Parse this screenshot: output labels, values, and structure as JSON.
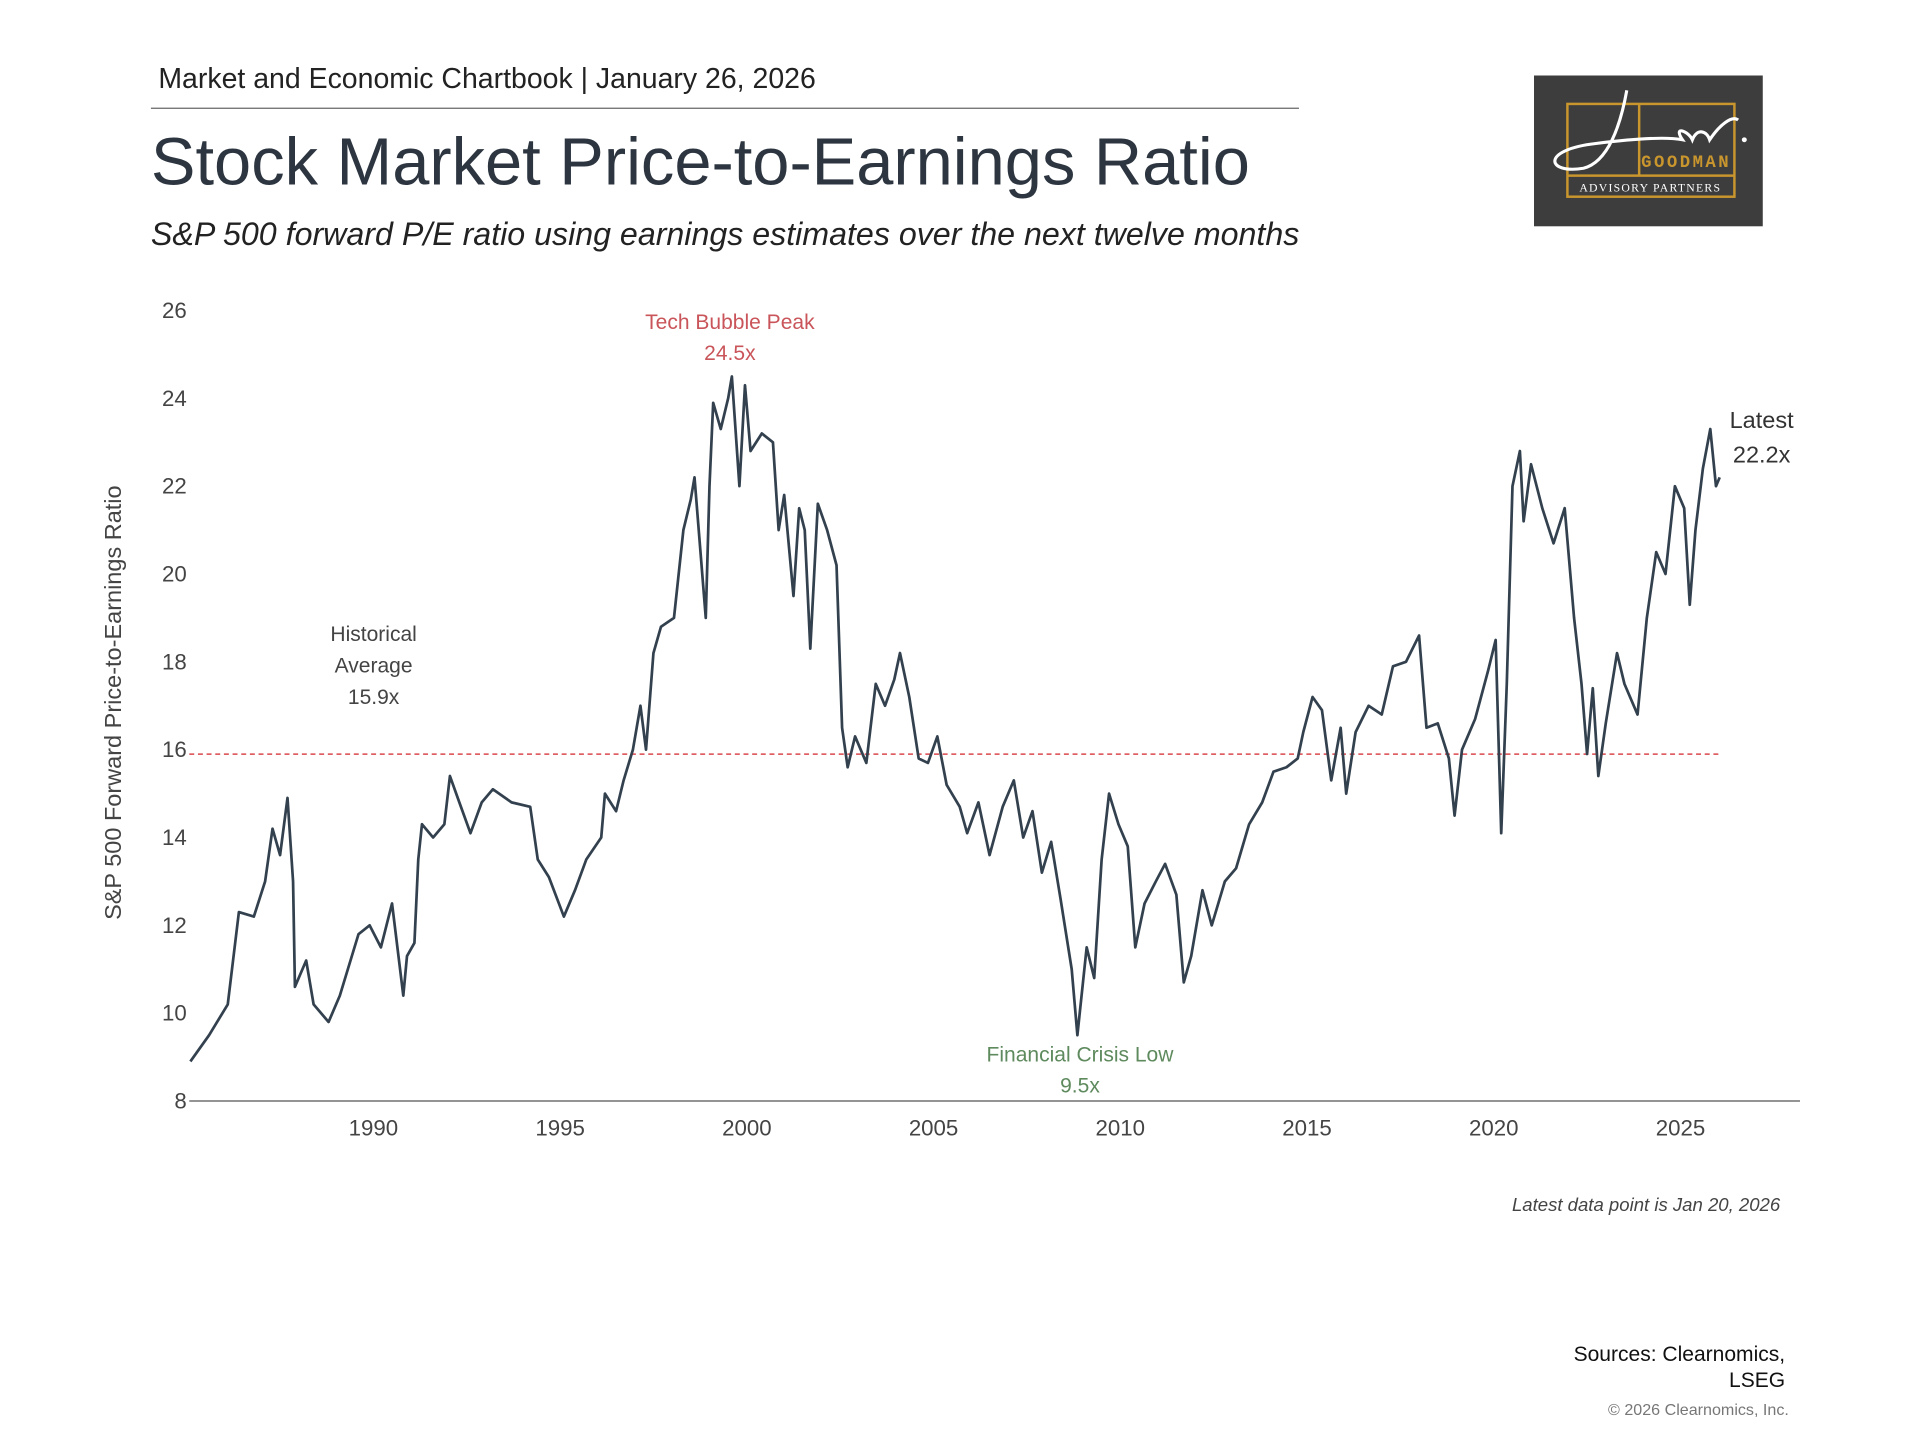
{
  "header": {
    "kicker": "Market and Economic Chartbook | January 26, 2026",
    "title": "Stock Market Price-to-Earnings Ratio",
    "subtitle": "S&P 500 forward P/E ratio using earnings estimates over the next twelve months"
  },
  "logo": {
    "script": "Jon C.",
    "name": "GOODMAN",
    "tagline": "ADVISORY PARTNERS",
    "bg": "#3d3d3d",
    "gold": "#c9962e"
  },
  "footer": {
    "note": "Latest data point is Jan 20, 2026",
    "sources_line1": "Sources: Clearnomics,",
    "sources_line2": "LSEG",
    "copyright": "© 2026 Clearnomics, Inc."
  },
  "chart_data": {
    "type": "line",
    "title": "Stock Market Price-to-Earnings Ratio",
    "xlabel": "",
    "ylabel": "S&P 500 Forward Price-to-Earnings Ratio",
    "xlim": [
      1985.07,
      2028.2
    ],
    "ylim": [
      8,
      26
    ],
    "yticks": [
      8,
      10,
      12,
      14,
      16,
      18,
      20,
      22,
      24,
      26
    ],
    "xticks": [
      1990,
      1995,
      2000,
      2005,
      2010,
      2015,
      2020,
      2025
    ],
    "grid": false,
    "line_color": "#33414f",
    "reference_line": {
      "value": 15.9,
      "color": "#d9484e",
      "style": "dashed"
    },
    "annotations": [
      {
        "id": "peak",
        "lines": [
          "Tech Bubble Peak",
          "24.5x"
        ],
        "color": "#c9555a",
        "x": 1999.6,
        "y": 24.5
      },
      {
        "id": "avg",
        "lines": [
          "Historical",
          "Average",
          "15.9x"
        ],
        "color": "#444444",
        "x": 1990.0,
        "y": 15.9
      },
      {
        "id": "low",
        "lines": [
          "Financial Crisis Low",
          "9.5x"
        ],
        "color": "#5e8a5e",
        "x": 2008.85,
        "y": 9.5
      },
      {
        "id": "latest",
        "lines": [
          "Latest",
          "22.2x"
        ],
        "color": "#333333",
        "x": 2026.05,
        "y": 22.2
      }
    ],
    "series": [
      {
        "name": "S&P 500 Forward P/E",
        "x": [
          1985.1,
          1985.6,
          1986.1,
          1986.4,
          1986.8,
          1987.1,
          1987.3,
          1987.5,
          1987.7,
          1987.85,
          1987.9,
          1988.2,
          1988.4,
          1988.8,
          1989.1,
          1989.6,
          1989.9,
          1990.2,
          1990.5,
          1990.8,
          1990.9,
          1991.1,
          1991.2,
          1991.3,
          1991.6,
          1991.9,
          1992.05,
          1992.3,
          1992.6,
          1992.9,
          1993.2,
          1993.7,
          1994.2,
          1994.4,
          1994.7,
          1995.1,
          1995.4,
          1995.7,
          1996.1,
          1996.2,
          1996.5,
          1996.7,
          1996.95,
          1997.15,
          1997.3,
          1997.5,
          1997.7,
          1998.05,
          1998.3,
          1998.5,
          1998.6,
          1998.9,
          1999.0,
          1999.1,
          1999.3,
          1999.5,
          1999.6,
          1999.8,
          1999.95,
          2000.1,
          2000.4,
          2000.7,
          2000.85,
          2001.0,
          2001.25,
          2001.4,
          2001.55,
          2001.7,
          2001.9,
          2002.15,
          2002.4,
          2002.55,
          2002.7,
          2002.9,
          2003.2,
          2003.45,
          2003.7,
          2003.95,
          2004.1,
          2004.35,
          2004.6,
          2004.85,
          2005.1,
          2005.35,
          2005.7,
          2005.9,
          2006.2,
          2006.5,
          2006.85,
          2007.15,
          2007.4,
          2007.65,
          2007.9,
          2008.15,
          2008.4,
          2008.7,
          2008.85,
          2009.1,
          2009.3,
          2009.5,
          2009.7,
          2009.95,
          2010.2,
          2010.4,
          2010.65,
          2010.95,
          2011.2,
          2011.5,
          2011.7,
          2011.9,
          2012.2,
          2012.45,
          2012.8,
          2013.1,
          2013.45,
          2013.8,
          2014.1,
          2014.45,
          2014.75,
          2014.9,
          2015.15,
          2015.4,
          2015.65,
          2015.9,
          2016.05,
          2016.3,
          2016.65,
          2017.0,
          2017.3,
          2017.65,
          2018.0,
          2018.2,
          2018.5,
          2018.8,
          2018.95,
          2019.15,
          2019.5,
          2019.85,
          2020.05,
          2020.2,
          2020.35,
          2020.5,
          2020.7,
          2020.8,
          2021.0,
          2021.3,
          2021.6,
          2021.9,
          2022.15,
          2022.35,
          2022.5,
          2022.65,
          2022.8,
          2023.0,
          2023.3,
          2023.5,
          2023.85,
          2024.1,
          2024.35,
          2024.6,
          2024.85,
          2025.1,
          2025.25,
          2025.4,
          2025.6,
          2025.8,
          2025.95,
          2026.05
        ],
        "y": [
          8.9,
          9.5,
          10.2,
          12.3,
          12.2,
          13.0,
          14.2,
          13.6,
          14.9,
          13.0,
          10.6,
          11.2,
          10.2,
          9.8,
          10.4,
          11.8,
          12.0,
          11.5,
          12.5,
          10.4,
          11.3,
          11.6,
          13.5,
          14.3,
          14.0,
          14.3,
          15.4,
          14.8,
          14.1,
          14.8,
          15.1,
          14.8,
          14.7,
          13.5,
          13.1,
          12.2,
          12.8,
          13.5,
          14.0,
          15.0,
          14.6,
          15.3,
          16.0,
          17.0,
          16.0,
          18.2,
          18.8,
          19.0,
          21.0,
          21.7,
          22.2,
          19.0,
          22.0,
          23.9,
          23.3,
          24.0,
          24.5,
          22.0,
          24.3,
          22.8,
          23.2,
          23.0,
          21.0,
          21.8,
          19.5,
          21.5,
          21.0,
          18.3,
          21.6,
          21.0,
          20.2,
          16.5,
          15.6,
          16.3,
          15.7,
          17.5,
          17.0,
          17.6,
          18.2,
          17.2,
          15.8,
          15.7,
          16.3,
          15.2,
          14.7,
          14.1,
          14.8,
          13.6,
          14.7,
          15.3,
          14.0,
          14.6,
          13.2,
          13.9,
          12.6,
          11.0,
          9.5,
          11.5,
          10.8,
          13.5,
          15.0,
          14.3,
          13.8,
          11.5,
          12.5,
          13.0,
          13.4,
          12.7,
          10.7,
          11.3,
          12.8,
          12.0,
          13.0,
          13.3,
          14.3,
          14.8,
          15.5,
          15.6,
          15.8,
          16.4,
          17.2,
          16.9,
          15.3,
          16.5,
          15.0,
          16.4,
          17.0,
          16.8,
          17.9,
          18.0,
          18.6,
          16.5,
          16.6,
          15.8,
          14.5,
          16.0,
          16.7,
          17.8,
          18.5,
          14.1,
          17.5,
          22.0,
          22.8,
          21.2,
          22.5,
          21.5,
          20.7,
          21.5,
          19.0,
          17.5,
          15.9,
          17.4,
          15.4,
          16.6,
          18.2,
          17.5,
          16.8,
          19.0,
          20.5,
          20.0,
          22.0,
          21.5,
          19.3,
          21.0,
          22.4,
          23.3,
          22.0,
          22.2
        ]
      }
    ]
  }
}
